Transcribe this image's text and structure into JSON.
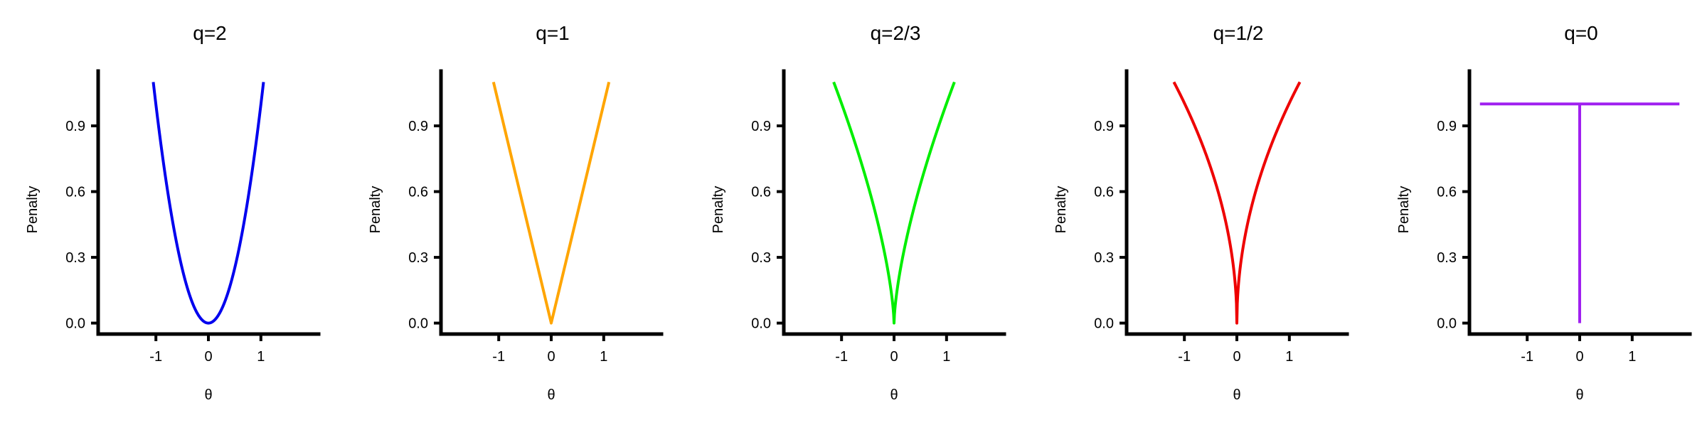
{
  "chart_data": [
    {
      "type": "line",
      "title": "q=2",
      "xlabel": "θ",
      "ylabel": "Penalty",
      "xlim": [
        -2.1,
        2.1
      ],
      "ylim": [
        -0.05,
        1.15
      ],
      "xticks": [
        -1,
        0,
        1
      ],
      "xtick_labels": [
        "-1",
        "0",
        "1"
      ],
      "yticks": [
        0.0,
        0.3,
        0.6,
        0.9
      ],
      "ytick_labels": [
        "0.0",
        "0.3",
        "0.6",
        "0.9"
      ],
      "grid": false,
      "color": "#0000ee",
      "q": 2,
      "x_range": [
        -1.05,
        1.05
      ],
      "series": [
        {
          "x": [
            -1.05,
            -0.75,
            -0.5,
            -0.25,
            0,
            0.25,
            0.5,
            0.75,
            1.05
          ],
          "y": [
            1.1,
            0.56,
            0.25,
            0.06,
            0,
            0.06,
            0.25,
            0.56,
            1.1
          ]
        }
      ]
    },
    {
      "type": "line",
      "title": "q=1",
      "xlabel": "θ",
      "ylabel": "Penalty",
      "xlim": [
        -2.1,
        2.1
      ],
      "ylim": [
        -0.05,
        1.15
      ],
      "xticks": [
        -1,
        0,
        1
      ],
      "xtick_labels": [
        "-1",
        "0",
        "1"
      ],
      "yticks": [
        0.0,
        0.3,
        0.6,
        0.9
      ],
      "ytick_labels": [
        "0.0",
        "0.3",
        "0.6",
        "0.9"
      ],
      "grid": false,
      "color": "#ffa500",
      "q": 1,
      "x_range": [
        -1.1,
        1.1
      ],
      "series": [
        {
          "x": [
            -1.1,
            -0.5,
            0,
            0.5,
            1.1
          ],
          "y": [
            1.1,
            0.5,
            0,
            0.5,
            1.1
          ]
        }
      ]
    },
    {
      "type": "line",
      "title": "q=2/3",
      "xlabel": "θ",
      "ylabel": "Penalty",
      "xlim": [
        -2.1,
        2.1
      ],
      "ylim": [
        -0.05,
        1.15
      ],
      "xticks": [
        -1,
        0,
        1
      ],
      "xtick_labels": [
        "-1",
        "0",
        "1"
      ],
      "yticks": [
        0.0,
        0.3,
        0.6,
        0.9
      ],
      "ytick_labels": [
        "0.0",
        "0.3",
        "0.6",
        "0.9"
      ],
      "grid": false,
      "color": "#00ee00",
      "q": 0.6667,
      "x_range": [
        -1.15,
        1.15
      ],
      "series": [
        {
          "x": [
            -1.15,
            -0.5,
            -0.1,
            0,
            0.1,
            0.5,
            1.15
          ],
          "y": [
            1.1,
            0.63,
            0.22,
            0.03,
            0.22,
            0.63,
            1.1
          ]
        }
      ]
    },
    {
      "type": "line",
      "title": "q=1/2",
      "xlabel": "θ",
      "ylabel": "Penalty",
      "xlim": [
        -2.1,
        2.1
      ],
      "ylim": [
        -0.05,
        1.15
      ],
      "xticks": [
        -1,
        0,
        1
      ],
      "xtick_labels": [
        "-1",
        "0",
        "1"
      ],
      "yticks": [
        0.0,
        0.3,
        0.6,
        0.9
      ],
      "ytick_labels": [
        "0.0",
        "0.3",
        "0.6",
        "0.9"
      ],
      "grid": false,
      "color": "#ee0000",
      "q": 0.5,
      "x_range": [
        -1.2,
        1.2
      ],
      "series": [
        {
          "x": [
            -1.2,
            -0.5,
            -0.1,
            0,
            0.1,
            0.5,
            1.2
          ],
          "y": [
            1.1,
            0.71,
            0.32,
            0.07,
            0.32,
            0.71,
            1.1
          ]
        }
      ]
    },
    {
      "type": "line",
      "title": "q=0",
      "xlabel": "θ",
      "ylabel": "Penalty",
      "xlim": [
        -2.1,
        2.1
      ],
      "ylim": [
        -0.05,
        1.15
      ],
      "xticks": [
        -1,
        0,
        1
      ],
      "xtick_labels": [
        "-1",
        "0",
        "1"
      ],
      "yticks": [
        0.0,
        0.3,
        0.6,
        0.9
      ],
      "ytick_labels": [
        "0.0",
        "0.3",
        "0.6",
        "0.9"
      ],
      "grid": false,
      "color": "#a020f0",
      "q": 0,
      "x_range": [
        -1.9,
        1.9
      ],
      "series": [
        {
          "x": [
            -1.9,
            1.9
          ],
          "y": [
            1.0,
            1.0
          ]
        },
        {
          "x": [
            0,
            0
          ],
          "y": [
            0,
            1.0
          ]
        }
      ]
    }
  ]
}
